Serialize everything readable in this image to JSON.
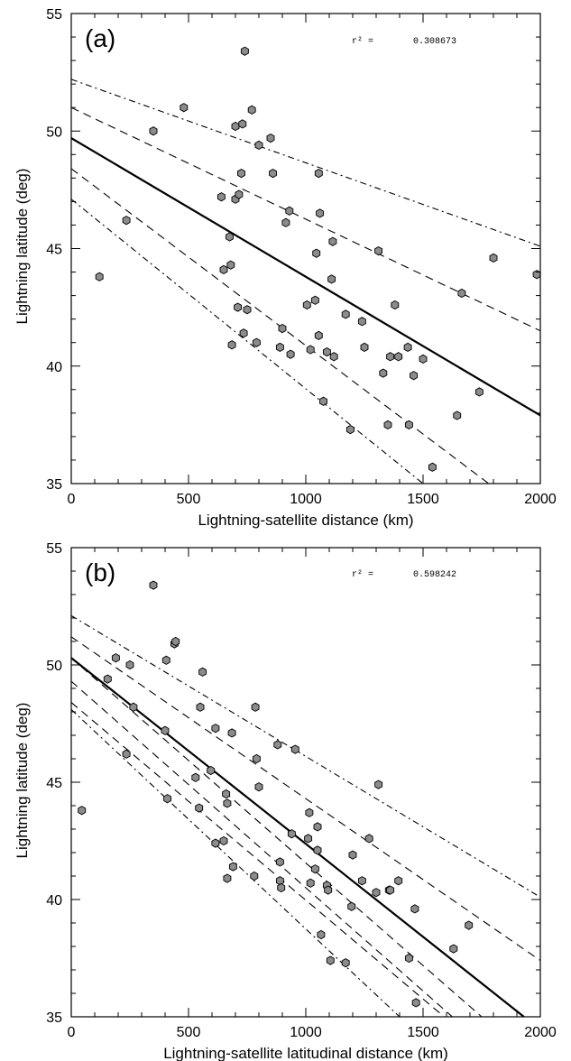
{
  "chart_data": [
    {
      "type": "scatter",
      "panel_label": "(a)",
      "title": "",
      "xlabel": "Lightning-satellite distance (km)",
      "ylabel": "Lightning latitude (deg)",
      "xlim": [
        0,
        2000
      ],
      "ylim": [
        35,
        55
      ],
      "xticks": [
        0,
        500,
        1000,
        1500,
        2000
      ],
      "yticks": [
        35,
        40,
        45,
        50,
        55
      ],
      "annotation": {
        "label": "r² =",
        "value": "0.308673"
      },
      "grid": false,
      "legend": "none",
      "points": [
        [
          120,
          43.8
        ],
        [
          235,
          46.2
        ],
        [
          350,
          50.0
        ],
        [
          480,
          51.0
        ],
        [
          640,
          47.2
        ],
        [
          650,
          44.1
        ],
        [
          675,
          45.5
        ],
        [
          680,
          44.3
        ],
        [
          685,
          40.9
        ],
        [
          700,
          50.2
        ],
        [
          700,
          47.1
        ],
        [
          710,
          42.5
        ],
        [
          715,
          47.3
        ],
        [
          725,
          48.2
        ],
        [
          730,
          50.3
        ],
        [
          735,
          41.4
        ],
        [
          740,
          53.4
        ],
        [
          750,
          42.4
        ],
        [
          770,
          50.9
        ],
        [
          790,
          41.0
        ],
        [
          800,
          49.4
        ],
        [
          850,
          49.7
        ],
        [
          860,
          48.2
        ],
        [
          890,
          40.8
        ],
        [
          900,
          41.6
        ],
        [
          915,
          46.1
        ],
        [
          930,
          46.6
        ],
        [
          935,
          40.5
        ],
        [
          1005,
          42.6
        ],
        [
          1020,
          40.7
        ],
        [
          1040,
          42.8
        ],
        [
          1045,
          44.8
        ],
        [
          1055,
          41.3
        ],
        [
          1055,
          48.2
        ],
        [
          1060,
          46.5
        ],
        [
          1075,
          38.5
        ],
        [
          1090,
          40.6
        ],
        [
          1110,
          43.7
        ],
        [
          1115,
          45.3
        ],
        [
          1120,
          40.4
        ],
        [
          1170,
          42.2
        ],
        [
          1190,
          37.3
        ],
        [
          1240,
          41.9
        ],
        [
          1250,
          40.8
        ],
        [
          1310,
          44.9
        ],
        [
          1330,
          39.7
        ],
        [
          1350,
          37.5
        ],
        [
          1360,
          40.4
        ],
        [
          1380,
          42.6
        ],
        [
          1395,
          40.4
        ],
        [
          1435,
          40.8
        ],
        [
          1440,
          37.5
        ],
        [
          1460,
          39.6
        ],
        [
          1500,
          40.3
        ],
        [
          1540,
          35.7
        ],
        [
          1645,
          37.9
        ],
        [
          1665,
          43.1
        ],
        [
          1740,
          38.9
        ],
        [
          1800,
          44.6
        ],
        [
          1985,
          43.9
        ]
      ],
      "lines": [
        {
          "style": "solid",
          "x": [
            0,
            2000
          ],
          "y": [
            49.7,
            37.9
          ]
        },
        {
          "style": "dashed",
          "x": [
            0,
            2000
          ],
          "y": [
            51.0,
            41.5
          ]
        },
        {
          "style": "dashed",
          "x": [
            0,
            1780
          ],
          "y": [
            48.4,
            35.0
          ]
        },
        {
          "style": "dashdot",
          "x": [
            0,
            2000
          ],
          "y": [
            52.2,
            45.1
          ]
        },
        {
          "style": "dashdot",
          "x": [
            0,
            1500
          ],
          "y": [
            47.1,
            35.0
          ]
        }
      ]
    },
    {
      "type": "scatter",
      "panel_label": "(b)",
      "title": "",
      "xlabel": "Lightning-satellite latitudinal distance (km)",
      "ylabel": "Lightning latitude (deg)",
      "xlim": [
        0,
        2000
      ],
      "ylim": [
        35,
        55
      ],
      "xticks": [
        0,
        500,
        1000,
        1500,
        2000
      ],
      "yticks": [
        35,
        40,
        45,
        50,
        55
      ],
      "annotation": {
        "label": "r² =",
        "value": "0.598242"
      },
      "grid": false,
      "legend": "none",
      "points": [
        [
          45,
          43.8
        ],
        [
          155,
          49.4
        ],
        [
          190,
          50.3
        ],
        [
          235,
          46.2
        ],
        [
          250,
          50.0
        ],
        [
          265,
          48.2
        ],
        [
          350,
          53.4
        ],
        [
          400,
          47.2
        ],
        [
          405,
          50.2
        ],
        [
          410,
          44.3
        ],
        [
          440,
          50.9
        ],
        [
          445,
          51.0
        ],
        [
          530,
          45.2
        ],
        [
          545,
          43.9
        ],
        [
          550,
          48.2
        ],
        [
          560,
          49.7
        ],
        [
          595,
          45.5
        ],
        [
          615,
          47.3
        ],
        [
          615,
          42.4
        ],
        [
          650,
          42.5
        ],
        [
          660,
          44.5
        ],
        [
          665,
          44.1
        ],
        [
          665,
          40.9
        ],
        [
          685,
          47.1
        ],
        [
          690,
          41.4
        ],
        [
          780,
          41.0
        ],
        [
          785,
          48.2
        ],
        [
          790,
          46.0
        ],
        [
          800,
          44.8
        ],
        [
          880,
          46.6
        ],
        [
          890,
          41.6
        ],
        [
          890,
          40.8
        ],
        [
          895,
          40.5
        ],
        [
          940,
          42.8
        ],
        [
          955,
          46.4
        ],
        [
          1010,
          42.6
        ],
        [
          1015,
          43.7
        ],
        [
          1020,
          40.7
        ],
        [
          1040,
          41.3
        ],
        [
          1050,
          43.1
        ],
        [
          1050,
          42.1
        ],
        [
          1065,
          38.5
        ],
        [
          1090,
          40.6
        ],
        [
          1095,
          40.4
        ],
        [
          1105,
          37.4
        ],
        [
          1170,
          37.3
        ],
        [
          1195,
          39.7
        ],
        [
          1200,
          41.9
        ],
        [
          1240,
          40.8
        ],
        [
          1270,
          42.6
        ],
        [
          1300,
          40.3
        ],
        [
          1310,
          44.9
        ],
        [
          1355,
          40.4
        ],
        [
          1360,
          40.4
        ],
        [
          1395,
          40.8
        ],
        [
          1440,
          37.5
        ],
        [
          1465,
          39.6
        ],
        [
          1470,
          35.6
        ],
        [
          1630,
          37.9
        ],
        [
          1695,
          38.9
        ]
      ],
      "lines": [
        {
          "style": "solid",
          "x": [
            0,
            1930
          ],
          "y": [
            50.3,
            35.0
          ]
        },
        {
          "style": "dashed",
          "x": [
            0,
            2000
          ],
          "y": [
            51.2,
            37.4
          ]
        },
        {
          "style": "dashed",
          "x": [
            0,
            1750
          ],
          "y": [
            50.3,
            35.0
          ]
        },
        {
          "style": "dashed",
          "x": [
            0,
            1625
          ],
          "y": [
            49.3,
            35.0
          ]
        },
        {
          "style": "dashed",
          "x": [
            0,
            1590
          ],
          "y": [
            48.4,
            35.0
          ]
        },
        {
          "style": "dashdot",
          "x": [
            0,
            2000
          ],
          "y": [
            52.1,
            40.1
          ]
        },
        {
          "style": "dashdot",
          "x": [
            0,
            1400
          ],
          "y": [
            48.1,
            35.0
          ]
        }
      ]
    }
  ]
}
